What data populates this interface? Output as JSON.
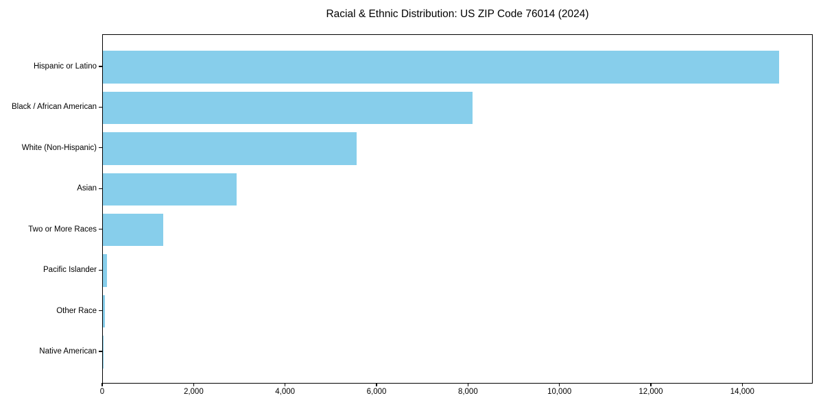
{
  "page": {
    "background_color": "#ffffff",
    "text_color": "#000000"
  },
  "chart_data": {
    "type": "bar",
    "orientation": "horizontal",
    "title": "Racial & Ethnic Distribution: US ZIP Code 76014 (2024)",
    "categories": [
      "Hispanic or Latino",
      "Black / African American",
      "White (Non-Hispanic)",
      "Asian",
      "Two or More Races",
      "Pacific Islander",
      "Other Race",
      "Native American"
    ],
    "values": [
      14795,
      8090,
      5550,
      2925,
      1320,
      95,
      50,
      15
    ],
    "xlabel": "",
    "ylabel": "",
    "xlim": [
      0,
      15540
    ],
    "xticks": [
      0,
      2000,
      4000,
      6000,
      8000,
      10000,
      12000,
      14000
    ],
    "xtick_labels": [
      "0",
      "2,000",
      "4,000",
      "6,000",
      "8,000",
      "10,000",
      "12,000",
      "14,000"
    ],
    "bar_color": "#87CEEB",
    "grid": false,
    "legend": "none",
    "frame": "full-box"
  }
}
